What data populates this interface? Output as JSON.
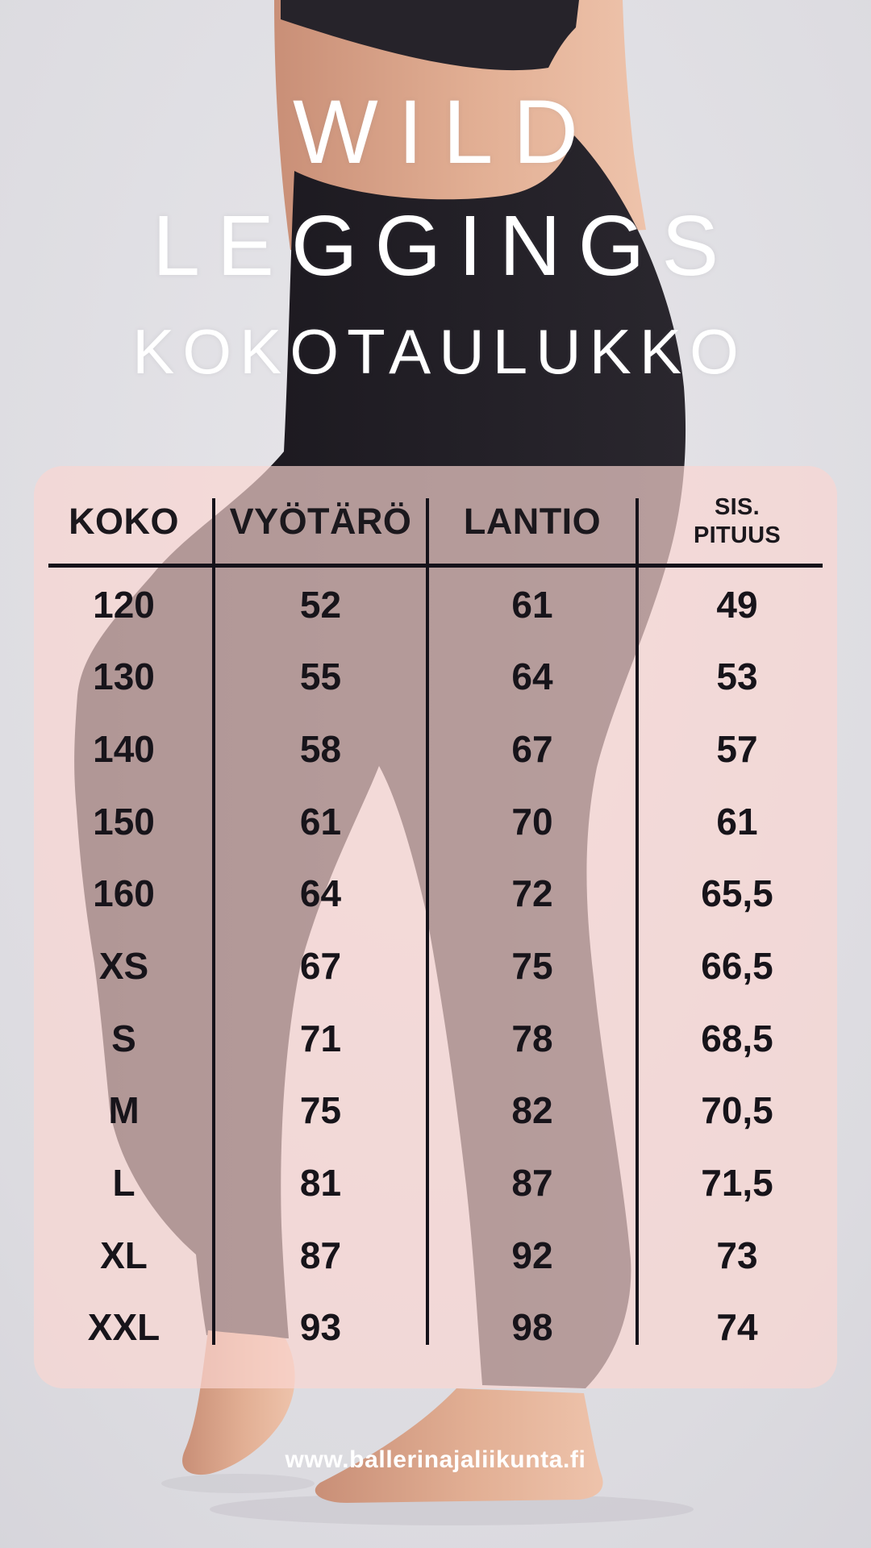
{
  "title": {
    "line1": "WILD",
    "line2": "LEGGINGS",
    "subtitle": "KOKOTAULUKKO"
  },
  "footer": {
    "website": "www.ballerinajaliikunta.fi"
  },
  "background": {
    "description": "photo of a person in black leggings standing on tiptoe on a light grey studio floor, side view, bare feet and midriff visible"
  },
  "colors": {
    "panel_pink": "rgba(250,214,210,0.68)",
    "table_text": "#17141a",
    "line_black": "#15121a",
    "title_white": "#ffffff",
    "backdrop_grey": "#dedde2",
    "leggings_black": "#1f1c21",
    "skin": "#d7a38c"
  },
  "chart_data": {
    "type": "table",
    "title": "WILD LEGGINGS KOKOTAULUKKO",
    "columns": [
      "KOKO",
      "VYÖTÄRÖ",
      "LANTIO",
      "SIS.\nPITUUS"
    ],
    "rows": [
      [
        "120",
        "52",
        "61",
        "49"
      ],
      [
        "130",
        "55",
        "64",
        "53"
      ],
      [
        "140",
        "58",
        "67",
        "57"
      ],
      [
        "150",
        "61",
        "70",
        "61"
      ],
      [
        "160",
        "64",
        "72",
        "65,5"
      ],
      [
        "XS",
        "67",
        "75",
        "66,5"
      ],
      [
        "S",
        "71",
        "78",
        "68,5"
      ],
      [
        "M",
        "75",
        "82",
        "70,5"
      ],
      [
        "L",
        "81",
        "87",
        "71,5"
      ],
      [
        "XL",
        "87",
        "92",
        "73"
      ],
      [
        "XXL",
        "93",
        "98",
        "74"
      ]
    ]
  }
}
